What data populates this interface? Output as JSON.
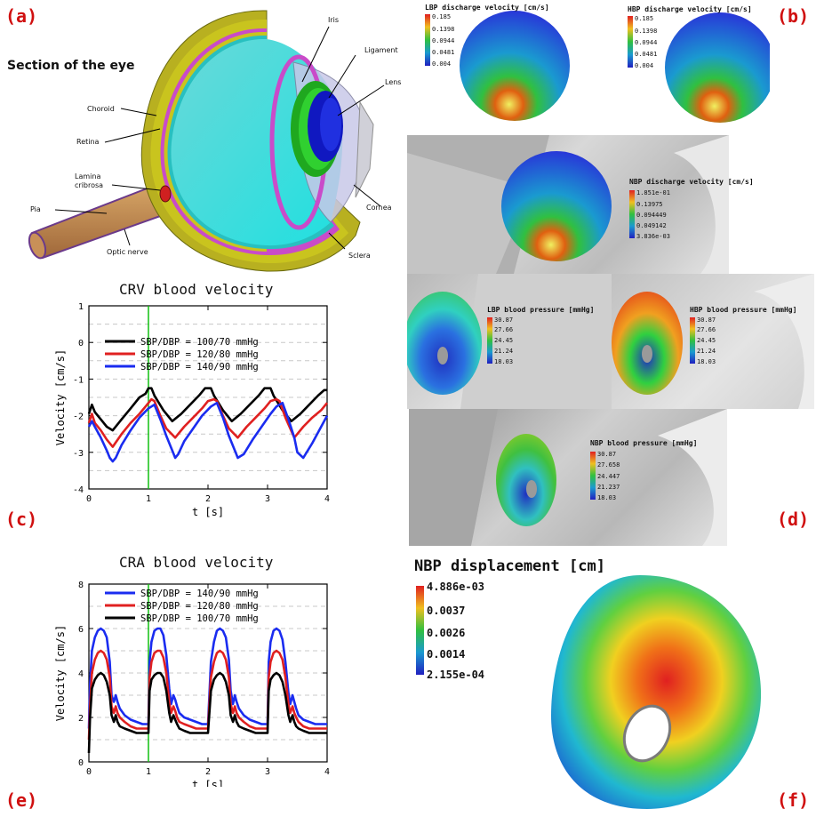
{
  "panel_labels": {
    "a": "(a)",
    "b": "(b)",
    "c": "(c)",
    "d": "(d)",
    "e": "(e)",
    "f": "(f)"
  },
  "eye": {
    "title": "Section of the eye",
    "labels": {
      "iris": "Iris",
      "ligament": "Ligament",
      "lens": "Lens",
      "choroid": "Choroid",
      "retina": "Retina",
      "lamina": "Lamina\ncribrosa",
      "pia": "Pia",
      "optic_nerve": "Optic nerve",
      "cornea": "Cornea",
      "sclera": "Sclera"
    }
  },
  "b_maps": [
    {
      "title": "LBP discharge velocity [cm/s]",
      "ticks": [
        "0.185",
        "0.1398",
        "0.0944",
        "0.0481",
        "0.004"
      ]
    },
    {
      "title": "HBP discharge velocity [cm/s]",
      "ticks": [
        "0.185",
        "0.1398",
        "0.0944",
        "0.0481",
        "0.004"
      ]
    },
    {
      "title": "NBP discharge velocity [cm/s]",
      "ticks": [
        "1.851e-01",
        "0.13975",
        "0.094449",
        "0.049142",
        "3.836e-03"
      ]
    }
  ],
  "d_maps": [
    {
      "title": "LBP blood pressure [mmHg]",
      "ticks": [
        "30.87",
        "27.66",
        "24.45",
        "21.24",
        "18.03"
      ]
    },
    {
      "title": "HBP blood pressure [mmHg]",
      "ticks": [
        "30.87",
        "27.66",
        "24.45",
        "21.24",
        "18.03"
      ]
    },
    {
      "title": "NBP blood pressure [mmHg]",
      "ticks": [
        "30.87",
        "27.658",
        "24.447",
        "21.237",
        "18.03"
      ]
    }
  ],
  "f_map": {
    "title": "NBP displacement [cm]",
    "ticks": [
      "4.886e-03",
      "0.0037",
      "0.0026",
      "0.0014",
      "2.155e-04"
    ]
  },
  "colors": {
    "red": "#e02020",
    "blue": "#1a2cf0",
    "black": "#000000",
    "marker": "#10c010",
    "label_red": "#d01010"
  },
  "chart_data": [
    {
      "type": "line",
      "title": "CRV blood velocity",
      "xlabel": "t [s]",
      "ylabel": "Velocity [cm/s]",
      "xlim": [
        0,
        4
      ],
      "ylim": [
        -4,
        1
      ],
      "xticks": [
        0,
        1,
        2,
        3,
        4
      ],
      "yticks": [
        -4,
        -3,
        -2,
        -1,
        0,
        1
      ],
      "grid": "dashed horizontal",
      "marker_x": 1,
      "legend_position": "center-left",
      "series": [
        {
          "name": "SBP/DBP = 100/70 mmHg",
          "color": "#000000",
          "x": [
            0,
            0.05,
            0.1,
            0.2,
            0.3,
            0.4,
            0.55,
            0.7,
            0.85,
            0.95,
            1.0,
            1.05,
            1.1,
            1.25,
            1.4,
            1.55,
            1.7,
            1.85,
            1.95,
            2.05,
            2.1,
            2.25,
            2.4,
            2.55,
            2.7,
            2.85,
            2.95,
            3.05,
            3.1,
            3.25,
            3.4,
            3.55,
            3.7,
            3.85,
            3.95,
            4.0
          ],
          "y": [
            -1.95,
            -1.7,
            -1.9,
            -2.1,
            -2.3,
            -2.4,
            -2.1,
            -1.8,
            -1.5,
            -1.4,
            -1.25,
            -1.25,
            -1.45,
            -1.85,
            -2.15,
            -1.95,
            -1.7,
            -1.45,
            -1.25,
            -1.25,
            -1.45,
            -1.85,
            -2.15,
            -1.95,
            -1.7,
            -1.45,
            -1.25,
            -1.25,
            -1.45,
            -1.85,
            -2.15,
            -1.95,
            -1.7,
            -1.45,
            -1.3,
            -1.3
          ]
        },
        {
          "name": "SBP/DBP = 120/80 mmHg",
          "color": "#e02020",
          "x": [
            0,
            0.05,
            0.1,
            0.2,
            0.3,
            0.4,
            0.55,
            0.7,
            0.85,
            0.95,
            1.05,
            1.1,
            1.2,
            1.3,
            1.45,
            1.6,
            1.75,
            1.9,
            2.0,
            2.1,
            2.15,
            2.25,
            2.35,
            2.5,
            2.65,
            2.8,
            2.95,
            3.05,
            3.15,
            3.2,
            3.3,
            3.45,
            3.6,
            3.75,
            3.9,
            4.0
          ],
          "y": [
            -2.2,
            -1.95,
            -2.2,
            -2.4,
            -2.65,
            -2.85,
            -2.5,
            -2.2,
            -1.95,
            -1.75,
            -1.55,
            -1.6,
            -2.0,
            -2.35,
            -2.6,
            -2.3,
            -2.05,
            -1.8,
            -1.6,
            -1.55,
            -1.6,
            -2.0,
            -2.35,
            -2.6,
            -2.3,
            -2.05,
            -1.8,
            -1.6,
            -1.55,
            -1.6,
            -2.05,
            -2.6,
            -2.3,
            -2.05,
            -1.85,
            -1.65
          ]
        },
        {
          "name": "SBP/DBP = 140/90 mmHg",
          "color": "#1a2cf0",
          "x": [
            0,
            0.05,
            0.1,
            0.2,
            0.3,
            0.35,
            0.4,
            0.45,
            0.55,
            0.7,
            0.85,
            1.0,
            1.1,
            1.2,
            1.3,
            1.4,
            1.45,
            1.5,
            1.6,
            1.75,
            1.9,
            2.05,
            2.15,
            2.25,
            2.35,
            2.45,
            2.5,
            2.6,
            2.75,
            2.9,
            3.05,
            3.15,
            3.25,
            3.35,
            3.45,
            3.5,
            3.6,
            3.75,
            3.9,
            4.0
          ],
          "y": [
            -2.3,
            -2.15,
            -2.3,
            -2.6,
            -2.95,
            -3.15,
            -3.25,
            -3.15,
            -2.8,
            -2.4,
            -2.05,
            -1.8,
            -1.7,
            -2.1,
            -2.55,
            -2.95,
            -3.15,
            -3.05,
            -2.7,
            -2.35,
            -2.0,
            -1.75,
            -1.65,
            -2.05,
            -2.55,
            -2.95,
            -3.15,
            -3.05,
            -2.65,
            -2.3,
            -1.95,
            -1.75,
            -1.65,
            -2.1,
            -2.6,
            -3.0,
            -3.15,
            -2.75,
            -2.3,
            -2.0
          ]
        }
      ]
    },
    {
      "type": "line",
      "title": "CRA blood velocity",
      "xlabel": "t [s]",
      "ylabel": "Velocity [cm/s]",
      "xlim": [
        0,
        4
      ],
      "ylim": [
        0,
        8
      ],
      "xticks": [
        0,
        1,
        2,
        3,
        4
      ],
      "yticks": [
        0,
        2,
        4,
        6,
        8
      ],
      "grid": "dashed horizontal",
      "marker_x": 1,
      "legend_position": "top-left",
      "series": [
        {
          "name": "SBP/DBP = 140/90 mmHg",
          "color": "#1a2cf0",
          "x": [
            0,
            0.02,
            0.05,
            0.1,
            0.15,
            0.2,
            0.25,
            0.3,
            0.35,
            0.38,
            0.42,
            0.45,
            0.48,
            0.52,
            0.6,
            0.7,
            0.8,
            0.9,
            1.0,
            1.02,
            1.05,
            1.1,
            1.15,
            1.2,
            1.25,
            1.3,
            1.35,
            1.38,
            1.42,
            1.45,
            1.48,
            1.52,
            1.6,
            1.7,
            1.8,
            1.9,
            2.0,
            2.05,
            2.1,
            2.15,
            2.2,
            2.25,
            2.3,
            2.35,
            2.38,
            2.42,
            2.45,
            2.48,
            2.52,
            2.6,
            2.7,
            2.8,
            2.9,
            3.0,
            3.02,
            3.05,
            3.1,
            3.15,
            3.2,
            3.25,
            3.3,
            3.35,
            3.38,
            3.42,
            3.45,
            3.48,
            3.52,
            3.6,
            3.7,
            3.8,
            3.9,
            4.0
          ],
          "y": [
            1.5,
            3.5,
            5.0,
            5.6,
            5.9,
            6.0,
            5.9,
            5.6,
            4.5,
            3.0,
            2.7,
            3.0,
            2.7,
            2.4,
            2.1,
            1.9,
            1.8,
            1.7,
            1.7,
            4.5,
            5.4,
            5.9,
            6.0,
            6.0,
            5.7,
            4.8,
            3.3,
            2.6,
            3.0,
            2.8,
            2.5,
            2.2,
            2.0,
            1.9,
            1.8,
            1.7,
            1.7,
            4.5,
            5.4,
            5.9,
            6.0,
            5.9,
            5.6,
            4.6,
            3.2,
            2.6,
            3.0,
            2.7,
            2.4,
            2.1,
            1.9,
            1.8,
            1.7,
            1.7,
            4.5,
            5.4,
            5.9,
            6.0,
            5.9,
            5.5,
            4.5,
            3.1,
            2.6,
            3.0,
            2.7,
            2.4,
            2.1,
            1.9,
            1.8,
            1.7,
            1.7,
            1.7
          ]
        },
        {
          "name": "SBP/DBP = 120/80 mmHg",
          "color": "#e02020",
          "x": [
            0,
            0.02,
            0.05,
            0.1,
            0.15,
            0.2,
            0.25,
            0.3,
            0.35,
            0.38,
            0.42,
            0.45,
            0.48,
            0.52,
            0.6,
            0.7,
            0.8,
            0.9,
            1.0,
            1.02,
            1.05,
            1.1,
            1.15,
            1.2,
            1.25,
            1.3,
            1.35,
            1.38,
            1.42,
            1.45,
            1.48,
            1.52,
            1.6,
            1.7,
            1.8,
            1.9,
            2.0,
            2.05,
            2.1,
            2.15,
            2.2,
            2.25,
            2.3,
            2.35,
            2.38,
            2.42,
            2.45,
            2.48,
            2.52,
            2.6,
            2.7,
            2.8,
            2.9,
            3.0,
            3.02,
            3.05,
            3.1,
            3.15,
            3.2,
            3.25,
            3.3,
            3.35,
            3.38,
            3.42,
            3.45,
            3.48,
            3.52,
            3.6,
            3.7,
            3.8,
            3.9,
            4.0
          ],
          "y": [
            1.0,
            2.5,
            4.0,
            4.6,
            4.9,
            5.0,
            4.9,
            4.6,
            3.8,
            2.5,
            2.2,
            2.5,
            2.2,
            2.0,
            1.8,
            1.6,
            1.5,
            1.5,
            1.5,
            3.8,
            4.5,
            4.9,
            5.0,
            5.0,
            4.7,
            4.0,
            2.7,
            2.2,
            2.5,
            2.3,
            2.0,
            1.8,
            1.7,
            1.6,
            1.5,
            1.5,
            1.5,
            3.8,
            4.5,
            4.9,
            5.0,
            4.9,
            4.6,
            3.8,
            2.6,
            2.2,
            2.5,
            2.2,
            2.0,
            1.8,
            1.6,
            1.5,
            1.5,
            1.5,
            3.8,
            4.5,
            4.9,
            5.0,
            4.9,
            4.6,
            3.8,
            2.6,
            2.2,
            2.5,
            2.2,
            2.0,
            1.8,
            1.6,
            1.5,
            1.5,
            1.5,
            1.5
          ]
        },
        {
          "name": "SBP/DBP = 100/70 mmHg",
          "color": "#000000",
          "x": [
            0,
            0.02,
            0.05,
            0.1,
            0.15,
            0.2,
            0.25,
            0.3,
            0.35,
            0.38,
            0.42,
            0.45,
            0.48,
            0.52,
            0.6,
            0.7,
            0.8,
            0.9,
            1.0,
            1.02,
            1.05,
            1.1,
            1.15,
            1.2,
            1.25,
            1.3,
            1.35,
            1.38,
            1.42,
            1.45,
            1.48,
            1.52,
            1.6,
            1.7,
            1.8,
            1.9,
            2.0,
            2.05,
            2.1,
            2.15,
            2.2,
            2.25,
            2.3,
            2.35,
            2.38,
            2.42,
            2.45,
            2.48,
            2.52,
            2.6,
            2.7,
            2.8,
            2.9,
            3.0,
            3.02,
            3.05,
            3.1,
            3.15,
            3.2,
            3.25,
            3.3,
            3.35,
            3.38,
            3.42,
            3.45,
            3.48,
            3.52,
            3.6,
            3.7,
            3.8,
            3.9,
            4.0
          ],
          "y": [
            0.4,
            2.0,
            3.3,
            3.7,
            3.9,
            4.0,
            3.9,
            3.6,
            3.0,
            2.1,
            1.8,
            2.1,
            1.8,
            1.6,
            1.5,
            1.4,
            1.3,
            1.3,
            1.3,
            3.2,
            3.7,
            3.9,
            4.0,
            4.0,
            3.8,
            3.2,
            2.2,
            1.8,
            2.1,
            1.9,
            1.7,
            1.5,
            1.4,
            1.3,
            1.3,
            1.3,
            1.3,
            3.2,
            3.7,
            3.9,
            4.0,
            3.9,
            3.6,
            3.0,
            2.1,
            1.8,
            2.1,
            1.8,
            1.6,
            1.5,
            1.4,
            1.3,
            1.3,
            1.3,
            3.2,
            3.7,
            3.9,
            4.0,
            3.9,
            3.6,
            3.0,
            2.1,
            1.8,
            2.1,
            1.8,
            1.6,
            1.5,
            1.4,
            1.3,
            1.3,
            1.3,
            1.3
          ]
        }
      ]
    }
  ]
}
